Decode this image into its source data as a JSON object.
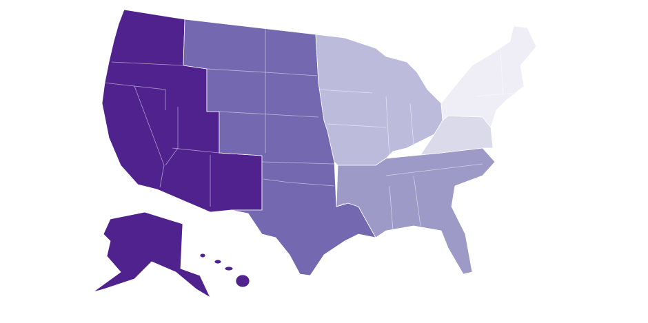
{
  "map": {
    "regions": [
      {
        "color": "#4f228e"
      },
      {
        "color": "#7469b0"
      },
      {
        "color": "#bcbbdc"
      },
      {
        "color": "#9e9ac8"
      },
      {
        "color": "#dadaeb"
      },
      {
        "color": "#efedf5"
      }
    ]
  }
}
